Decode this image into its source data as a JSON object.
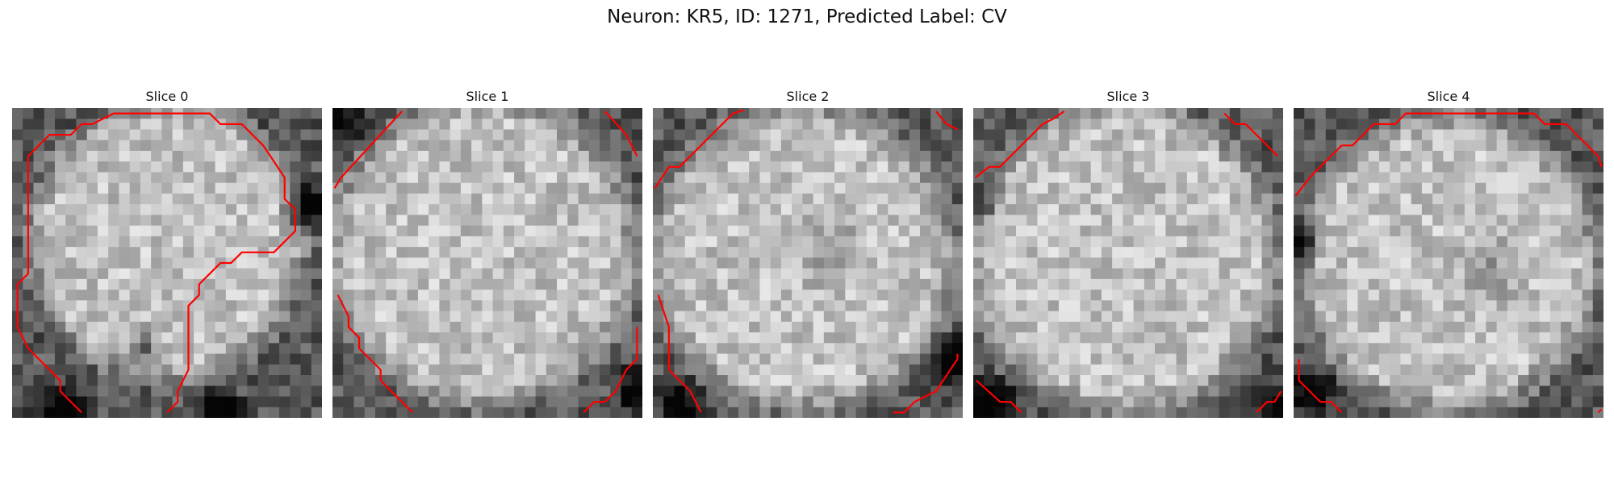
{
  "figure": {
    "title": "Neuron: KR5, ID: 1271, Predicted Label: CV"
  },
  "image_grid_cells": 29,
  "colors": {
    "contour": "#ff0000",
    "background": "#ffffff"
  },
  "panels": [
    {
      "title": "Slice 0",
      "contours": [
        [
          [
            6.5,
            28.5
          ],
          [
            4.5,
            26.5
          ],
          [
            4.5,
            25.5
          ],
          [
            1.5,
            22.5
          ],
          [
            0.5,
            20.5
          ],
          [
            0.5,
            16.5
          ],
          [
            1.5,
            15.5
          ],
          [
            1.5,
            4.5
          ],
          [
            3.5,
            2.5
          ],
          [
            5.5,
            2.5
          ],
          [
            6.5,
            1.5
          ],
          [
            7.5,
            1.5
          ],
          [
            9.5,
            0.5
          ],
          [
            18.5,
            0.5
          ],
          [
            19.5,
            1.5
          ],
          [
            21.5,
            1.5
          ],
          [
            22.5,
            2.5
          ],
          [
            23.5,
            3.5
          ],
          [
            25.5,
            6.5
          ],
          [
            25.5,
            8.5
          ],
          [
            26.5,
            9.5
          ],
          [
            26.5,
            11.5
          ],
          [
            24.5,
            13.5
          ],
          [
            21.5,
            13.5
          ],
          [
            20.5,
            14.5
          ],
          [
            19.5,
            14.5
          ],
          [
            18.5,
            15.5
          ],
          [
            17.5,
            16.5
          ],
          [
            17.5,
            17.5
          ],
          [
            16.5,
            18.5
          ],
          [
            16.5,
            24.5
          ],
          [
            15.5,
            26.5
          ],
          [
            15.5,
            27.5
          ],
          [
            14.5,
            28.5
          ]
        ]
      ]
    },
    {
      "title": "Slice 1",
      "contours": [
        [
          [
            0.2,
            7.5
          ],
          [
            0.8,
            6.5
          ],
          [
            6.5,
            0.3
          ]
        ],
        [
          [
            25.5,
            0.3
          ],
          [
            27.5,
            2.5
          ],
          [
            28.5,
            4.5
          ]
        ],
        [
          [
            0.5,
            17.5
          ],
          [
            1.5,
            19.5
          ],
          [
            1.5,
            20.5
          ],
          [
            2.5,
            21.5
          ],
          [
            2.5,
            22.5
          ],
          [
            4.5,
            24.5
          ],
          [
            4.5,
            25.5
          ],
          [
            5.5,
            26.5
          ],
          [
            6.5,
            27.5
          ],
          [
            7.5,
            28.5
          ]
        ],
        [
          [
            23.5,
            28.5
          ],
          [
            24.5,
            27.5
          ],
          [
            25.5,
            27.5
          ],
          [
            26.5,
            26.5
          ],
          [
            27.5,
            24.5
          ],
          [
            28.5,
            23.5
          ],
          [
            28.5,
            20.5
          ]
        ]
      ]
    },
    {
      "title": "Slice 2",
      "contours": [
        [
          [
            0.2,
            7.5
          ],
          [
            1.5,
            5.5
          ],
          [
            2.5,
            5.5
          ],
          [
            3.5,
            4.5
          ],
          [
            7.5,
            0.5
          ],
          [
            8.5,
            0.2
          ]
        ],
        [
          [
            26.5,
            0.3
          ],
          [
            27.5,
            1.5
          ],
          [
            28.5,
            2.0
          ]
        ],
        [
          [
            0.5,
            17.5
          ],
          [
            1.5,
            20.5
          ],
          [
            1.5,
            24.5
          ],
          [
            3.5,
            26.5
          ],
          [
            4.5,
            28.5
          ]
        ],
        [
          [
            22.5,
            28.5
          ],
          [
            23.5,
            28.5
          ],
          [
            24.5,
            27.5
          ],
          [
            26.5,
            26.5
          ],
          [
            28.5,
            23.5
          ],
          [
            28.5,
            23.0
          ]
        ]
      ]
    },
    {
      "title": "Slice 3",
      "contours": [
        [
          [
            0.2,
            6.5
          ],
          [
            1.5,
            5.5
          ],
          [
            2.5,
            5.5
          ],
          [
            3.5,
            4.5
          ],
          [
            5.5,
            2.5
          ],
          [
            6.5,
            1.5
          ],
          [
            7.5,
            1.0
          ],
          [
            8.5,
            0.3
          ]
        ],
        [
          [
            23.5,
            0.5
          ],
          [
            24.5,
            1.5
          ],
          [
            25.5,
            1.5
          ],
          [
            26.5,
            2.5
          ],
          [
            28.5,
            4.5
          ]
        ],
        [
          [
            0.3,
            25.5
          ],
          [
            2.5,
            27.5
          ],
          [
            3.5,
            27.5
          ],
          [
            4.5,
            28.5
          ]
        ],
        [
          [
            26.5,
            28.5
          ],
          [
            27.5,
            27.5
          ],
          [
            28.2,
            27.5
          ],
          [
            28.8,
            26.5
          ]
        ]
      ]
    },
    {
      "title": "Slice 4",
      "contours": [
        [
          [
            0.2,
            8.2
          ],
          [
            1.5,
            6.5
          ],
          [
            2.5,
            5.5
          ],
          [
            3.5,
            4.5
          ],
          [
            4.5,
            3.5
          ],
          [
            5.5,
            3.5
          ],
          [
            6.5,
            2.5
          ],
          [
            7.5,
            1.5
          ],
          [
            9.5,
            1.5
          ],
          [
            10.5,
            0.5
          ],
          [
            22.5,
            0.5
          ],
          [
            23.5,
            1.5
          ],
          [
            25.5,
            1.5
          ],
          [
            26.5,
            2.5
          ],
          [
            27.5,
            3.5
          ],
          [
            28.5,
            4.5
          ],
          [
            28.8,
            5.5
          ]
        ],
        [
          [
            0.5,
            23.5
          ],
          [
            0.5,
            25.5
          ],
          [
            1.5,
            26.5
          ],
          [
            2.5,
            27.5
          ],
          [
            3.5,
            27.5
          ],
          [
            4.5,
            28.5
          ]
        ],
        [
          [
            28.5,
            28.5
          ],
          [
            28.8,
            28.2
          ]
        ]
      ]
    }
  ]
}
